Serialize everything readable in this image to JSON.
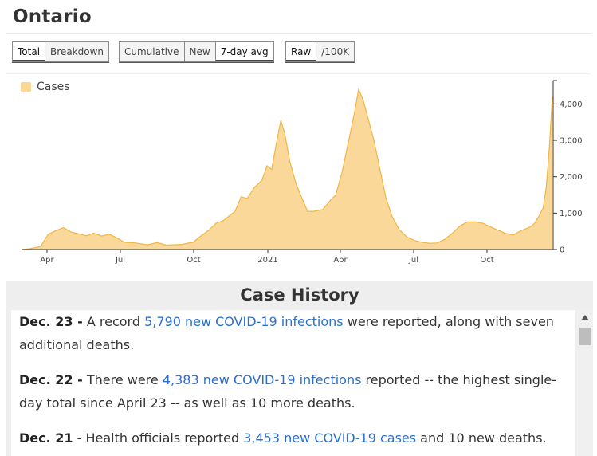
{
  "page": {
    "title": "Ontario"
  },
  "toolbar": {
    "view": {
      "total": "Total",
      "breakdown": "Breakdown",
      "active": "total"
    },
    "mode": {
      "cumulative": "Cumulative",
      "new": "New",
      "avg": "7-day avg",
      "active": "avg"
    },
    "scale": {
      "raw": "Raw",
      "per100k": "/100K",
      "active": "raw"
    }
  },
  "chart_data": {
    "type": "area",
    "series": [
      {
        "name": "Cases",
        "color": "#f9d89a",
        "stroke": "#f2b545"
      }
    ],
    "x_ticks": [
      "Apr",
      "Jul",
      "Oct",
      "2021",
      "Apr",
      "Jul",
      "Oct"
    ],
    "y_ticks": [
      "0",
      "1,000",
      "2,000",
      "3,000",
      "4,000"
    ],
    "ylim": [
      0,
      4600
    ],
    "points": [
      [
        0,
        0
      ],
      [
        10,
        20
      ],
      [
        25,
        80
      ],
      [
        30,
        250
      ],
      [
        35,
        420
      ],
      [
        45,
        520
      ],
      [
        55,
        600
      ],
      [
        65,
        480
      ],
      [
        75,
        430
      ],
      [
        85,
        380
      ],
      [
        95,
        450
      ],
      [
        105,
        370
      ],
      [
        115,
        420
      ],
      [
        125,
        320
      ],
      [
        135,
        200
      ],
      [
        150,
        180
      ],
      [
        165,
        130
      ],
      [
        178,
        190
      ],
      [
        190,
        120
      ],
      [
        210,
        140
      ],
      [
        225,
        200
      ],
      [
        235,
        370
      ],
      [
        245,
        520
      ],
      [
        255,
        720
      ],
      [
        265,
        800
      ],
      [
        272,
        920
      ],
      [
        280,
        1050
      ],
      [
        288,
        1450
      ],
      [
        296,
        1400
      ],
      [
        305,
        1700
      ],
      [
        315,
        1900
      ],
      [
        322,
        2300
      ],
      [
        328,
        2200
      ],
      [
        334,
        2900
      ],
      [
        340,
        3550
      ],
      [
        345,
        3200
      ],
      [
        352,
        2400
      ],
      [
        360,
        1800
      ],
      [
        368,
        1400
      ],
      [
        375,
        1050
      ],
      [
        383,
        1050
      ],
      [
        395,
        1100
      ],
      [
        405,
        1350
      ],
      [
        412,
        1500
      ],
      [
        420,
        2100
      ],
      [
        428,
        2900
      ],
      [
        436,
        3700
      ],
      [
        442,
        4400
      ],
      [
        448,
        4100
      ],
      [
        455,
        3550
      ],
      [
        462,
        3000
      ],
      [
        470,
        2200
      ],
      [
        478,
        1400
      ],
      [
        486,
        900
      ],
      [
        495,
        550
      ],
      [
        505,
        350
      ],
      [
        515,
        250
      ],
      [
        525,
        200
      ],
      [
        535,
        170
      ],
      [
        545,
        180
      ],
      [
        555,
        280
      ],
      [
        565,
        450
      ],
      [
        575,
        650
      ],
      [
        585,
        760
      ],
      [
        595,
        760
      ],
      [
        605,
        720
      ],
      [
        615,
        620
      ],
      [
        625,
        530
      ],
      [
        635,
        440
      ],
      [
        645,
        400
      ],
      [
        655,
        520
      ],
      [
        665,
        600
      ],
      [
        672,
        700
      ],
      [
        678,
        900
      ],
      [
        684,
        1150
      ],
      [
        688,
        1700
      ],
      [
        692,
        2800
      ],
      [
        696,
        4200
      ]
    ]
  },
  "case_history": {
    "title": "Case History",
    "entries": [
      {
        "date": "Dec. 23 -",
        "pre": " A record ",
        "link": "5,790 new COVID-19 infections",
        "post": " were reported, along with seven additional deaths."
      },
      {
        "date": "Dec. 22 -",
        "pre": " There were ",
        "link": "4,383 new COVID-19 infections",
        "post": " reported -- the highest single-day total since April 23 -- as well as 10 more deaths."
      },
      {
        "date": "Dec. 21",
        "pre": " - Health officials reported ",
        "link": "3,453 new COVID-19 cases",
        "post": " and 10 new deaths."
      }
    ]
  }
}
